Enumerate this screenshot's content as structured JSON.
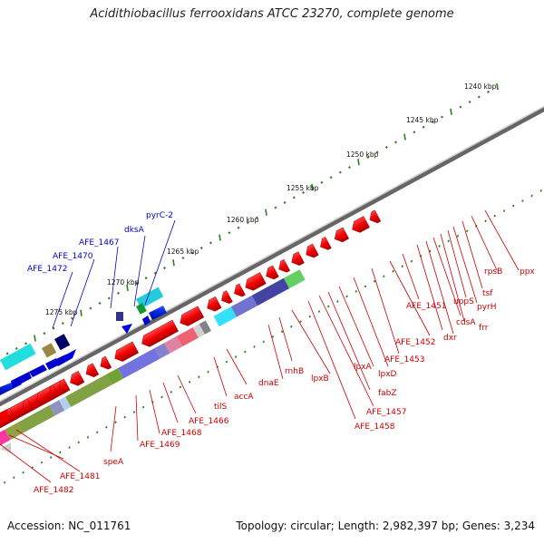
{
  "title": "Acidithiobacillus ferrooxidans ATCC 23270, complete genome",
  "footer": {
    "accession": "Accession: NC_011761",
    "stats": "Topology: circular; Length: 2,982,397 bp; Genes: 3,234"
  },
  "ruler": {
    "labels": [
      "1240 kbp",
      "1245 kbp",
      "1250 kbp",
      "1255 kbp",
      "1260 kbp",
      "1265 kbp",
      "1270 kbp",
      "1275 kbp"
    ]
  },
  "genes_forward_labels": [
    "pyrC-2",
    "dksA",
    "AFE_1467",
    "AFE_1470",
    "AFE_1472"
  ],
  "genes_reverse_labels": [
    "ppx",
    "rpsB",
    "tsf",
    "pyrH",
    "uppS",
    "frr",
    "cdsA",
    "dxr",
    "AFE_1451",
    "AFE_1452",
    "AFE_1453",
    "lpxD",
    "lpxA",
    "fabZ",
    "AFE_1457",
    "AFE_1458",
    "lpxB",
    "rnhB",
    "dnaE",
    "accA",
    "tilS",
    "AFE_1466",
    "AFE_1468",
    "AFE_1469",
    "speA",
    "AFE_1481",
    "AFE_1482"
  ],
  "colors": {
    "gene_red": "#cc0000",
    "gene_blue": "#0000cc",
    "backbone": "#888888",
    "tick_green": "#2e7d1f"
  }
}
